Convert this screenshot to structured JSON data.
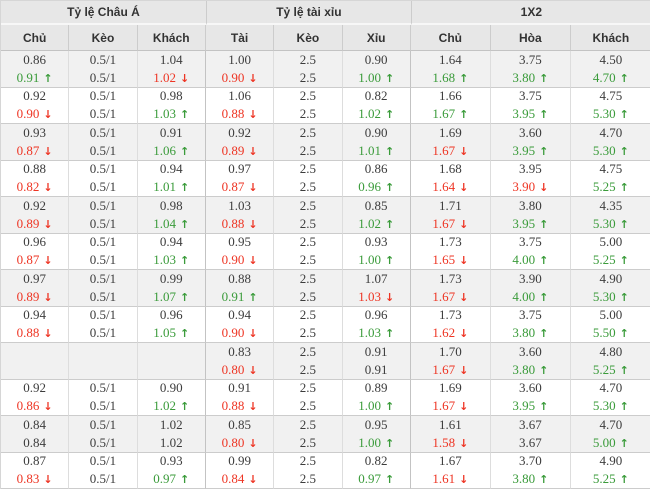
{
  "colors": {
    "up_green": "#3a9b3a",
    "down_red": "#ee3524",
    "text": "#3c3c3c",
    "header_bg": "#e7e7e7",
    "row_shade_bg": "#f1f1f1",
    "border": "#cccccc"
  },
  "icons": {
    "up_arrow": "↑",
    "down_arrow": "↓"
  },
  "table": {
    "groups": [
      {
        "label": "Tỷ lệ Châu Á",
        "cols": [
          "Chủ",
          "Kèo",
          "Khách"
        ]
      },
      {
        "label": "Tỷ lệ tài xỉu",
        "cols": [
          "Tài",
          "Kèo",
          "Xỉu"
        ]
      },
      {
        "label": "1X2",
        "cols": [
          "Chủ",
          "Hòa",
          "Khách"
        ]
      }
    ],
    "row_groups": [
      {
        "rows": [
          [
            "0.86",
            "0.5/1",
            "1.04",
            "1.00",
            "2.5",
            "0.90",
            "1.64",
            "3.75",
            "4.50"
          ],
          [
            "0.91|u",
            "0.5/1",
            "1.02|d",
            "0.90|d",
            "2.5",
            "1.00|u",
            "1.68|u",
            "3.80|u",
            "4.70|u"
          ]
        ]
      },
      {
        "rows": [
          [
            "0.92",
            "0.5/1",
            "0.98",
            "1.06",
            "2.5",
            "0.82",
            "1.66",
            "3.75",
            "4.75"
          ],
          [
            "0.90|d",
            "0.5/1",
            "1.03|u",
            "0.88|d",
            "2.5",
            "1.02|u",
            "1.67|u",
            "3.95|u",
            "5.30|u"
          ]
        ]
      },
      {
        "rows": [
          [
            "0.93",
            "0.5/1",
            "0.91",
            "0.92",
            "2.5",
            "0.90",
            "1.69",
            "3.60",
            "4.70"
          ],
          [
            "0.87|d",
            "0.5/1",
            "1.06|u",
            "0.89|d",
            "2.5",
            "1.01|u",
            "1.67|d",
            "3.95|u",
            "5.30|u"
          ]
        ]
      },
      {
        "rows": [
          [
            "0.88",
            "0.5/1",
            "0.94",
            "0.97",
            "2.5",
            "0.86",
            "1.68",
            "3.95",
            "4.75"
          ],
          [
            "0.82|d",
            "0.5/1",
            "1.01|u",
            "0.87|d",
            "2.5",
            "0.96|u",
            "1.64|d",
            "3.90|d",
            "5.25|u"
          ]
        ]
      },
      {
        "rows": [
          [
            "0.92",
            "0.5/1",
            "0.98",
            "1.03",
            "2.5",
            "0.85",
            "1.71",
            "3.80",
            "4.35"
          ],
          [
            "0.89|d",
            "0.5/1",
            "1.04|u",
            "0.88|d",
            "2.5",
            "1.02|u",
            "1.67|d",
            "3.95|u",
            "5.30|u"
          ]
        ]
      },
      {
        "rows": [
          [
            "0.96",
            "0.5/1",
            "0.94",
            "0.95",
            "2.5",
            "0.93",
            "1.73",
            "3.75",
            "5.00"
          ],
          [
            "0.87|d",
            "0.5/1",
            "1.03|u",
            "0.90|d",
            "2.5",
            "1.00|u",
            "1.65|d",
            "4.00|u",
            "5.25|u"
          ]
        ]
      },
      {
        "rows": [
          [
            "0.97",
            "0.5/1",
            "0.99",
            "0.88",
            "2.5",
            "1.07",
            "1.73",
            "3.90",
            "4.90"
          ],
          [
            "0.89|d",
            "0.5/1",
            "1.07|u",
            "0.91|u",
            "2.5",
            "1.03|d",
            "1.67|d",
            "4.00|u",
            "5.30|u"
          ]
        ]
      },
      {
        "rows": [
          [
            "0.94",
            "0.5/1",
            "0.96",
            "0.94",
            "2.5",
            "0.96",
            "1.73",
            "3.75",
            "5.00"
          ],
          [
            "0.88|d",
            "0.5/1",
            "1.05|u",
            "0.90|d",
            "2.5",
            "1.03|u",
            "1.62|d",
            "3.80|u",
            "5.50|u"
          ]
        ]
      },
      {
        "rows": [
          [
            "",
            "",
            "",
            "0.83",
            "2.5",
            "0.91",
            "1.70",
            "3.60",
            "4.80"
          ],
          [
            "",
            "",
            "",
            "0.80|d",
            "2.5",
            "0.91",
            "1.67|d",
            "3.80|u",
            "5.25|u"
          ]
        ]
      },
      {
        "rows": [
          [
            "0.92",
            "0.5/1",
            "0.90",
            "0.91",
            "2.5",
            "0.89",
            "1.69",
            "3.60",
            "4.70"
          ],
          [
            "0.86|d",
            "0.5/1",
            "1.02|u",
            "0.88|d",
            "2.5",
            "1.00|u",
            "1.67|d",
            "3.95|u",
            "5.30|u"
          ]
        ]
      },
      {
        "rows": [
          [
            "0.84",
            "0.5/1",
            "1.02",
            "0.85",
            "2.5",
            "0.95",
            "1.61",
            "3.67",
            "4.70"
          ],
          [
            "0.84",
            "0.5/1",
            "1.02",
            "0.80|d",
            "2.5",
            "1.00|u",
            "1.58|d",
            "3.67",
            "5.00|u"
          ]
        ]
      },
      {
        "rows": [
          [
            "0.87",
            "0.5/1",
            "0.93",
            "0.99",
            "2.5",
            "0.82",
            "1.67",
            "3.70",
            "4.90"
          ],
          [
            "0.83|d",
            "0.5/1",
            "0.97|u",
            "0.84|d",
            "2.5",
            "0.97|u",
            "1.61|d",
            "3.80|u",
            "5.25|u"
          ]
        ]
      }
    ]
  }
}
